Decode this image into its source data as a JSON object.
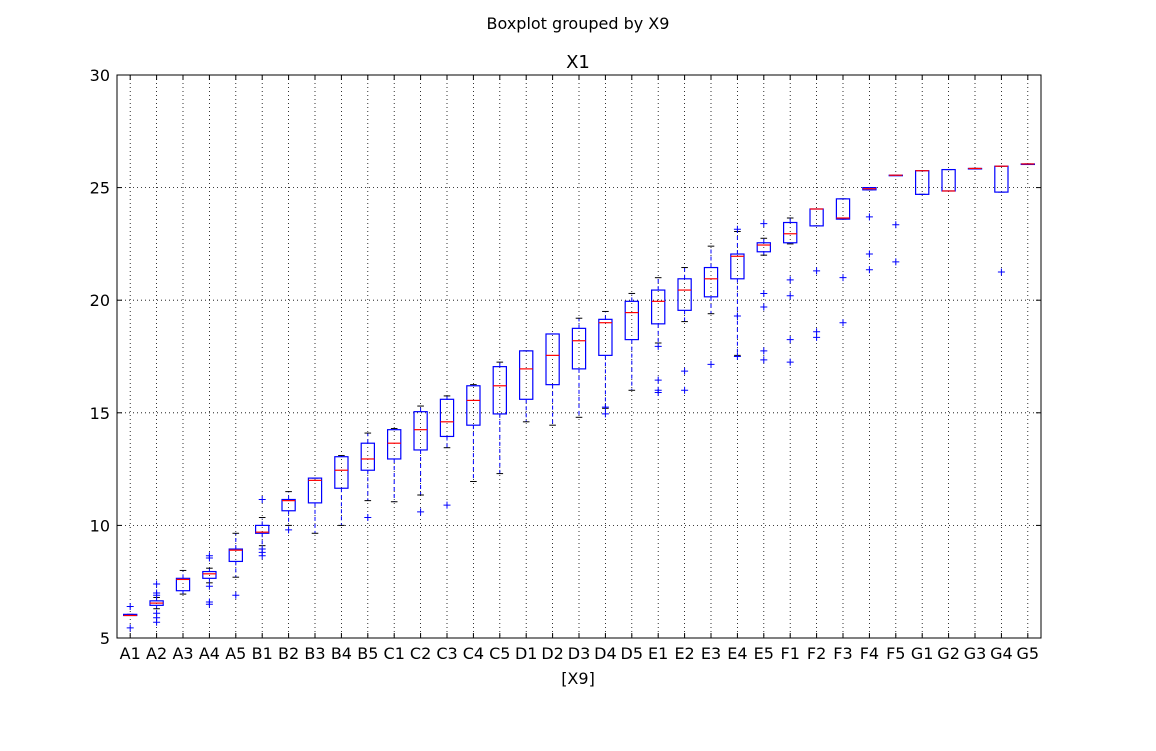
{
  "figure": {
    "suptitle": "Boxplot grouped by X9"
  },
  "chart_data": {
    "type": "boxplot",
    "title": "X1",
    "xlabel": "[X9]",
    "ylabel": "",
    "ylim": [
      5,
      30
    ],
    "yticks": [
      5,
      10,
      15,
      20,
      25,
      30
    ],
    "grid": true,
    "colors": {
      "box": "#0000ff",
      "median": "#ff0000",
      "flier": "#0000ff",
      "cap": "#000000",
      "grid": "#000000"
    },
    "categories": [
      "A1",
      "A2",
      "A3",
      "A4",
      "A5",
      "B1",
      "B2",
      "B3",
      "B4",
      "B5",
      "C1",
      "C2",
      "C3",
      "C4",
      "C5",
      "D1",
      "D2",
      "D3",
      "D4",
      "D5",
      "E1",
      "E2",
      "E3",
      "E4",
      "E5",
      "F1",
      "F2",
      "F3",
      "F4",
      "F5",
      "G1",
      "G2",
      "G3",
      "G4",
      "G5"
    ],
    "boxes": [
      {
        "q1": 6.0,
        "median": 6.0,
        "q3": 6.05,
        "whislo": 6.0,
        "whishi": 6.05,
        "fliers": [
          5.45,
          6.4
        ]
      },
      {
        "q1": 6.45,
        "median": 6.55,
        "q3": 6.65,
        "whislo": 6.3,
        "whishi": 6.8,
        "fliers": [
          5.7,
          5.9,
          6.1,
          6.9,
          7.0,
          7.4
        ]
      },
      {
        "q1": 7.1,
        "median": 7.6,
        "q3": 7.65,
        "whislo": 6.95,
        "whishi": 8.0,
        "fliers": []
      },
      {
        "q1": 7.65,
        "median": 7.85,
        "q3": 7.95,
        "whislo": 7.45,
        "whishi": 8.1,
        "fliers": [
          6.5,
          6.6,
          7.3,
          8.55,
          8.65
        ]
      },
      {
        "q1": 8.4,
        "median": 8.9,
        "q3": 8.95,
        "whislo": 7.7,
        "whishi": 9.65,
        "fliers": [
          6.9
        ]
      },
      {
        "q1": 9.65,
        "median": 9.7,
        "q3": 10.0,
        "whislo": 9.1,
        "whishi": 10.35,
        "fliers": [
          8.65,
          8.8,
          8.95,
          11.15
        ]
      },
      {
        "q1": 10.65,
        "median": 11.1,
        "q3": 11.15,
        "whislo": 10.0,
        "whishi": 11.5,
        "fliers": [
          9.8
        ]
      },
      {
        "q1": 11.0,
        "median": 12.0,
        "q3": 12.1,
        "whislo": 9.65,
        "whishi": 12.1,
        "fliers": []
      },
      {
        "q1": 11.65,
        "median": 12.45,
        "q3": 13.05,
        "whislo": 10.0,
        "whishi": 13.1,
        "fliers": []
      },
      {
        "q1": 12.45,
        "median": 12.95,
        "q3": 13.65,
        "whislo": 11.1,
        "whishi": 14.1,
        "fliers": [
          10.35
        ]
      },
      {
        "q1": 12.95,
        "median": 13.65,
        "q3": 14.25,
        "whislo": 11.05,
        "whishi": 14.3,
        "fliers": []
      },
      {
        "q1": 13.35,
        "median": 14.25,
        "q3": 15.05,
        "whislo": 11.35,
        "whishi": 15.3,
        "fliers": [
          10.6
        ]
      },
      {
        "q1": 13.95,
        "median": 14.6,
        "q3": 15.6,
        "whislo": 13.45,
        "whishi": 15.75,
        "fliers": [
          10.9
        ]
      },
      {
        "q1": 14.45,
        "median": 15.55,
        "q3": 16.2,
        "whislo": 11.95,
        "whishi": 16.25,
        "fliers": []
      },
      {
        "q1": 14.95,
        "median": 16.2,
        "q3": 17.05,
        "whislo": 12.3,
        "whishi": 17.25,
        "fliers": []
      },
      {
        "q1": 15.6,
        "median": 16.95,
        "q3": 17.75,
        "whislo": 14.6,
        "whishi": 17.75,
        "fliers": []
      },
      {
        "q1": 16.25,
        "median": 17.55,
        "q3": 18.5,
        "whislo": 14.45,
        "whishi": 18.5,
        "fliers": []
      },
      {
        "q1": 16.95,
        "median": 18.2,
        "q3": 18.75,
        "whislo": 14.8,
        "whishi": 19.2,
        "fliers": []
      },
      {
        "q1": 17.55,
        "median": 19.0,
        "q3": 19.15,
        "whislo": 15.2,
        "whishi": 19.5,
        "fliers": [
          14.95,
          15.25
        ]
      },
      {
        "q1": 18.25,
        "median": 19.45,
        "q3": 19.95,
        "whislo": 16.0,
        "whishi": 20.3,
        "fliers": []
      },
      {
        "q1": 18.95,
        "median": 19.95,
        "q3": 20.45,
        "whislo": 18.1,
        "whishi": 21.0,
        "fliers": [
          15.9,
          16.0,
          16.45,
          17.95
        ]
      },
      {
        "q1": 19.55,
        "median": 20.45,
        "q3": 20.95,
        "whislo": 19.05,
        "whishi": 21.45,
        "fliers": [
          16.0,
          16.85
        ]
      },
      {
        "q1": 20.15,
        "median": 20.95,
        "q3": 21.45,
        "whislo": 19.4,
        "whishi": 22.4,
        "fliers": [
          17.15
        ]
      },
      {
        "q1": 20.95,
        "median": 21.95,
        "q3": 22.05,
        "whislo": 17.55,
        "whishi": 23.05,
        "fliers": [
          17.5,
          19.3,
          23.15
        ]
      },
      {
        "q1": 22.15,
        "median": 22.45,
        "q3": 22.55,
        "whislo": 22.0,
        "whishi": 22.75,
        "fliers": [
          17.35,
          17.75,
          19.7,
          20.3,
          23.4
        ]
      },
      {
        "q1": 22.55,
        "median": 22.95,
        "q3": 23.45,
        "whislo": 22.5,
        "whishi": 23.65,
        "fliers": [
          17.25,
          18.25,
          20.2,
          20.9
        ]
      },
      {
        "q1": 23.3,
        "median": 24.05,
        "q3": 24.05,
        "whislo": 23.3,
        "whishi": 24.05,
        "fliers": [
          18.35,
          18.6,
          21.3
        ]
      },
      {
        "q1": 23.6,
        "median": 23.65,
        "q3": 24.5,
        "whislo": 23.6,
        "whishi": 24.5,
        "fliers": [
          19.0,
          21.0
        ]
      },
      {
        "q1": 24.9,
        "median": 24.95,
        "q3": 25.0,
        "whislo": 24.9,
        "whishi": 25.0,
        "fliers": [
          21.35,
          22.05,
          23.7
        ]
      },
      {
        "q1": 25.55,
        "median": 25.55,
        "q3": 25.55,
        "whislo": 25.55,
        "whishi": 25.55,
        "fliers": [
          21.7,
          23.35
        ]
      },
      {
        "q1": 24.7,
        "median": 25.75,
        "q3": 25.75,
        "whislo": 24.7,
        "whishi": 25.75,
        "fliers": []
      },
      {
        "q1": 24.85,
        "median": 24.85,
        "q3": 25.8,
        "whislo": 24.85,
        "whishi": 25.8,
        "fliers": []
      },
      {
        "q1": 25.85,
        "median": 25.85,
        "q3": 25.85,
        "whislo": 25.85,
        "whishi": 25.85,
        "fliers": []
      },
      {
        "q1": 24.8,
        "median": 25.95,
        "q3": 25.95,
        "whislo": 24.8,
        "whishi": 25.95,
        "fliers": [
          21.25
        ]
      },
      {
        "q1": 26.05,
        "median": 26.05,
        "q3": 26.05,
        "whislo": 26.05,
        "whishi": 26.05,
        "fliers": []
      }
    ]
  }
}
